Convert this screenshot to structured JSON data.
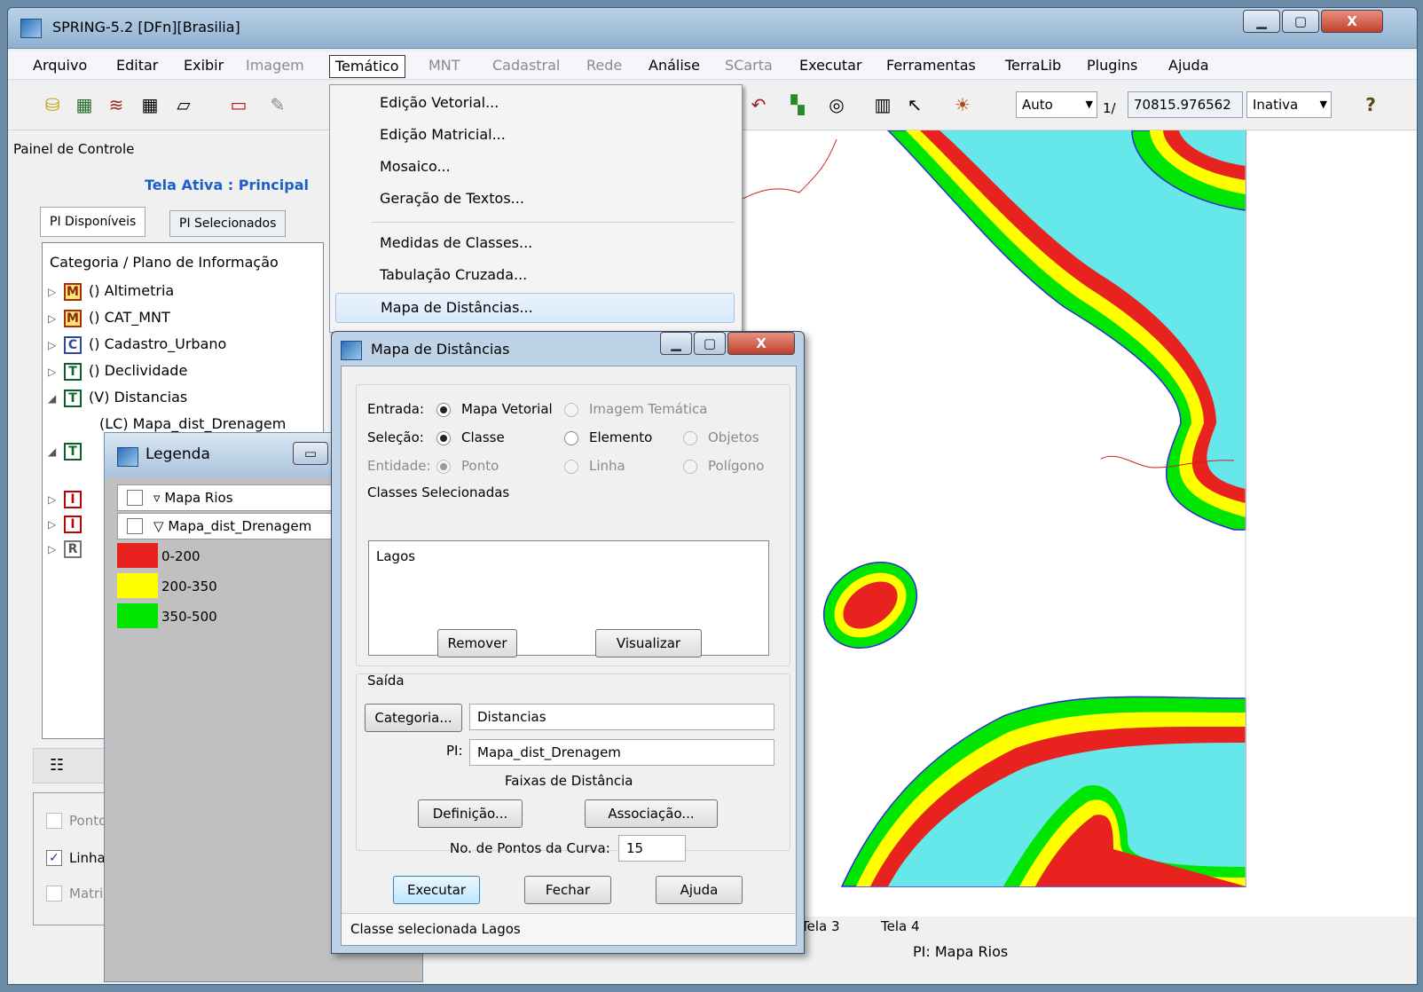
{
  "window": {
    "title": "SPRING-5.2 [DFn][Brasilia]",
    "minimize": "▁",
    "maximize": "▢",
    "close": "X"
  },
  "menu": [
    {
      "label": "Arquivo",
      "disabled": false
    },
    {
      "label": "Editar",
      "disabled": false
    },
    {
      "label": "Exibir",
      "disabled": false
    },
    {
      "label": "Imagem",
      "disabled": true
    },
    {
      "label": "Temático",
      "disabled": false,
      "active": true
    },
    {
      "label": "MNT",
      "disabled": true
    },
    {
      "label": "Cadastral",
      "disabled": true
    },
    {
      "label": "Rede",
      "disabled": true
    },
    {
      "label": "Análise",
      "disabled": false
    },
    {
      "label": "SCarta",
      "disabled": true
    },
    {
      "label": "Executar",
      "disabled": false
    },
    {
      "label": "Ferramentas",
      "disabled": false
    },
    {
      "label": "TerraLib",
      "disabled": false
    },
    {
      "label": "Plugins",
      "disabled": false
    },
    {
      "label": "Ajuda",
      "disabled": false
    }
  ],
  "toolbar": {
    "scale_mode": "Auto",
    "scale_prefix": "1/",
    "scale_value": "70815.976562",
    "state": "Inativa",
    "help": "?"
  },
  "control_panel": {
    "title": "Painel de Controle",
    "active_screen": "Tela Ativa : Principal",
    "tabs": [
      "PI Disponíveis",
      "PI Selecionados"
    ],
    "tree_header": "Categoria / Plano de Informação",
    "tree": [
      {
        "badge": "M",
        "kind": "m",
        "label": "() Altimetria",
        "expanded": false
      },
      {
        "badge": "M",
        "kind": "m",
        "label": "() CAT_MNT",
        "expanded": false
      },
      {
        "badge": "C",
        "kind": "c",
        "label": "() Cadastro_Urbano",
        "expanded": false
      },
      {
        "badge": "T",
        "kind": "t",
        "label": "() Declividade",
        "expanded": false
      },
      {
        "badge": "T",
        "kind": "t",
        "label": "(V) Distancias",
        "expanded": true
      },
      {
        "badge": "",
        "kind": "child",
        "label": "(LC) Mapa_dist_Drenagem",
        "expanded": false
      },
      {
        "badge": "T",
        "kind": "t",
        "label": "",
        "expanded": true
      },
      {
        "badge": "I",
        "kind": "i",
        "label": "",
        "expanded": false
      },
      {
        "badge": "I",
        "kind": "i",
        "label": "",
        "expanded": false
      },
      {
        "badge": "R",
        "kind": "r",
        "label": "",
        "expanded": false
      }
    ],
    "checkboxes": [
      {
        "label": "Ponto",
        "checked": false
      },
      {
        "label": "Linha",
        "checked": true
      },
      {
        "label": "Matriz",
        "checked": false
      }
    ]
  },
  "legend": {
    "title": "Legenda",
    "layers": [
      "Mapa Rios",
      "Mapa_dist_Drenagem"
    ],
    "classes": [
      {
        "label": "0-200",
        "color": "#e8231f"
      },
      {
        "label": "200-350",
        "color": "#ffff00"
      },
      {
        "label": "350-500",
        "color": "#00e600"
      }
    ]
  },
  "tematico_menu": {
    "items": [
      {
        "label": "Edição Vetorial...",
        "highlighted": false
      },
      {
        "label": "Edição Matricial...",
        "highlighted": false
      },
      {
        "label": "Mosaico...",
        "highlighted": false
      },
      {
        "label": "Geração de Textos...",
        "highlighted": false
      },
      {
        "label": "Medidas de Classes...",
        "highlighted": false
      },
      {
        "label": "Tabulação Cruzada...",
        "highlighted": false
      },
      {
        "label": "Mapa de Distâncias...",
        "highlighted": true
      }
    ]
  },
  "dialog": {
    "title": "Mapa de Distâncias",
    "entrada_label": "Entrada:",
    "entrada_options": [
      {
        "label": "Mapa Vetorial",
        "selected": true,
        "disabled": false
      },
      {
        "label": "Imagem Temática",
        "selected": false,
        "disabled": true
      }
    ],
    "selecao_label": "Seleção:",
    "selecao_options": [
      {
        "label": "Classe",
        "selected": true,
        "disabled": false
      },
      {
        "label": "Elemento",
        "selected": false,
        "disabled": false
      },
      {
        "label": "Objetos",
        "selected": false,
        "disabled": true
      }
    ],
    "entidade_label": "Entidade:",
    "entidade_options": [
      {
        "label": "Ponto",
        "selected": true,
        "disabled": true
      },
      {
        "label": "Linha",
        "selected": false,
        "disabled": true
      },
      {
        "label": "Polígono",
        "selected": false,
        "disabled": true
      }
    ],
    "classes_label": "Classes Selecionadas",
    "classes": [
      "Lagos"
    ],
    "remover": "Remover",
    "visualizar": "Visualizar",
    "saida_label": "Saída",
    "categoria_btn": "Categoria...",
    "categoria_value": "Distancias",
    "pi_label": "PI:",
    "pi_value": "Mapa_dist_Drenagem",
    "faixas_label": "Faixas de Distância",
    "definicao": "Definição...",
    "associacao": "Associação...",
    "pontos_label": "No. de Pontos da Curva:",
    "pontos_value": "15",
    "executar": "Executar",
    "fechar": "Fechar",
    "ajuda": "Ajuda",
    "status": "Classe selecionada Lagos"
  },
  "map": {
    "tabs": [
      "Tela 3",
      "Tela 4"
    ],
    "status": "PI: Mapa Rios",
    "colors": {
      "water": "#66e8ea",
      "band_0_200": "#e8231f",
      "band_200_350": "#ffff00",
      "band_350_500": "#00e600",
      "river": "#d0201a",
      "edge": "#2b2bd4"
    }
  }
}
